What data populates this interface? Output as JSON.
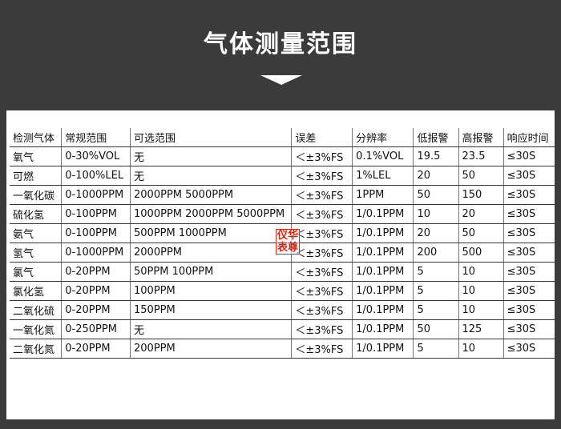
{
  "header": {
    "title": "气体测量范围"
  },
  "table": {
    "columns": [
      "检测气体",
      "常规范围",
      "可选范围",
      "误差",
      "分辨率",
      "低报警",
      "高报警",
      "响应时间"
    ],
    "rows": [
      [
        "氧气",
        "0-30%VOL",
        "无",
        "＜±3%FS",
        "0.1%VOL",
        "19.5",
        "23.5",
        "≤30S"
      ],
      [
        "可燃",
        "0-100%LEL",
        "无",
        "＜±3%FS",
        "1%LEL",
        "20",
        "50",
        "≤30S"
      ],
      [
        "一氧化碳",
        "0-1000PPM",
        "2000PPM  5000PPM",
        "＜±3%FS",
        "1PPM",
        "50",
        "150",
        "≤30S"
      ],
      [
        "硫化氢",
        "0-100PPM",
        "1000PPM  2000PPM  5000PPM",
        "＜±3%FS",
        "1/0.1PPM",
        "10",
        "20",
        "≤30S"
      ],
      [
        "氨气",
        "0-100PPM",
        "500PPM  1000PPM",
        "＜±3%FS",
        "1/0.1PPM",
        "20",
        "50",
        "≤30S"
      ],
      [
        "氢气",
        "0-1000PPM",
        "2000PPM",
        "＜±3%FS",
        "1/0.1PPM",
        "200",
        "500",
        "≤30S"
      ],
      [
        "氯气",
        "0-20PPM",
        "50PPM  100PPM",
        "＜±3%FS",
        "1/0.1PPM",
        "5",
        "10",
        "≤30S"
      ],
      [
        "氯化氢",
        "0-20PPM",
        "100PPM",
        "＜±3%FS",
        "1/0.1PPM",
        "5",
        "10",
        "≤30S"
      ],
      [
        "二氧化硫",
        "0-20PPM",
        "150PPM",
        "＜±3%FS",
        "1/0.1PPM",
        "5",
        "10",
        "≤30S"
      ],
      [
        "一氧化氮",
        "0-250PPM",
        "无",
        "＜±3%FS",
        "1/0.1PPM",
        "50",
        "125",
        "≤30S"
      ],
      [
        "二氧化氮",
        "0-20PPM",
        "200PPM",
        "＜±3%FS",
        "1/0.1PPM",
        "5",
        "10",
        "≤30S"
      ]
    ]
  },
  "stamp": {
    "lines": [
      "仪华",
      "表尊"
    ]
  }
}
